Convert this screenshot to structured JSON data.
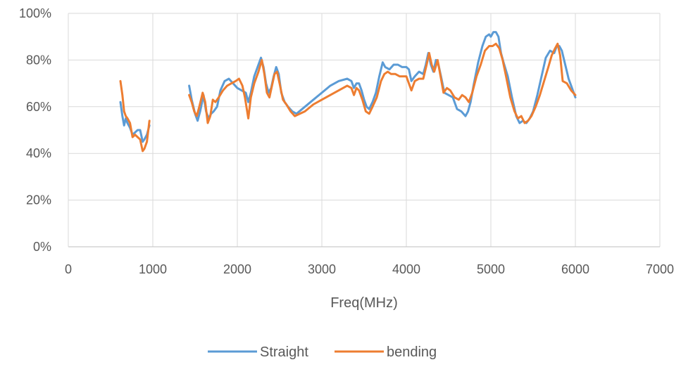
{
  "chart_data": {
    "type": "line",
    "title": "",
    "xlabel": "Freq(MHz)",
    "ylabel": "",
    "xlim": [
      0,
      7000
    ],
    "ylim": [
      0,
      1
    ],
    "x_ticks": [
      0,
      1000,
      2000,
      3000,
      4000,
      5000,
      6000,
      7000
    ],
    "x_tick_labels": [
      "0",
      "1000",
      "2000",
      "3000",
      "4000",
      "5000",
      "6000",
      "7000"
    ],
    "y_ticks": [
      0,
      0.2,
      0.4,
      0.6,
      0.8,
      1.0
    ],
    "y_tick_labels": [
      "0%",
      "20%",
      "40%",
      "60%",
      "80%",
      "100%"
    ],
    "grid": "vertical-and-horizontal",
    "legend": "bottom",
    "series": [
      {
        "name": "Straight",
        "color": "#5b9bd5",
        "segments": [
          [
            [
              617,
              0.62
            ],
            [
              640,
              0.56
            ],
            [
              660,
              0.52
            ],
            [
              680,
              0.55
            ],
            [
              700,
              0.53
            ],
            [
              730,
              0.51
            ],
            [
              760,
              0.48
            ],
            [
              790,
              0.49
            ],
            [
              820,
              0.5
            ],
            [
              850,
              0.5
            ],
            [
              880,
              0.45
            ],
            [
              900,
              0.46
            ],
            [
              930,
              0.48
            ],
            [
              960,
              0.52
            ]
          ],
          [
            [
              1430,
              0.69
            ],
            [
              1460,
              0.63
            ],
            [
              1500,
              0.57
            ],
            [
              1530,
              0.54
            ],
            [
              1560,
              0.58
            ],
            [
              1600,
              0.65
            ],
            [
              1630,
              0.58
            ],
            [
              1660,
              0.55
            ],
            [
              1690,
              0.57
            ],
            [
              1720,
              0.58
            ],
            [
              1760,
              0.6
            ],
            [
              1800,
              0.67
            ],
            [
              1850,
              0.71
            ],
            [
              1900,
              0.72
            ],
            [
              1950,
              0.7
            ],
            [
              2000,
              0.68
            ],
            [
              2050,
              0.67
            ],
            [
              2100,
              0.66
            ],
            [
              2130,
              0.62
            ],
            [
              2160,
              0.66
            ],
            [
              2200,
              0.73
            ],
            [
              2250,
              0.78
            ],
            [
              2280,
              0.81
            ],
            [
              2310,
              0.77
            ],
            [
              2340,
              0.7
            ],
            [
              2370,
              0.66
            ],
            [
              2400,
              0.68
            ],
            [
              2430,
              0.73
            ],
            [
              2460,
              0.77
            ],
            [
              2490,
              0.74
            ],
            [
              2520,
              0.66
            ],
            [
              2560,
              0.62
            ],
            [
              2600,
              0.6
            ],
            [
              2650,
              0.58
            ],
            [
              2700,
              0.57
            ],
            [
              2800,
              0.6
            ],
            [
              2900,
              0.63
            ],
            [
              3000,
              0.66
            ],
            [
              3100,
              0.69
            ],
            [
              3200,
              0.71
            ],
            [
              3300,
              0.72
            ],
            [
              3350,
              0.71
            ],
            [
              3380,
              0.68
            ],
            [
              3410,
              0.7
            ],
            [
              3440,
              0.7
            ],
            [
              3470,
              0.67
            ],
            [
              3500,
              0.63
            ],
            [
              3530,
              0.6
            ],
            [
              3560,
              0.59
            ],
            [
              3600,
              0.62
            ],
            [
              3640,
              0.66
            ],
            [
              3680,
              0.73
            ],
            [
              3720,
              0.79
            ],
            [
              3750,
              0.77
            ],
            [
              3800,
              0.76
            ],
            [
              3850,
              0.78
            ],
            [
              3900,
              0.78
            ],
            [
              3950,
              0.77
            ],
            [
              4000,
              0.77
            ],
            [
              4030,
              0.76
            ],
            [
              4060,
              0.71
            ],
            [
              4100,
              0.73
            ],
            [
              4150,
              0.75
            ],
            [
              4200,
              0.74
            ],
            [
              4230,
              0.78
            ],
            [
              4260,
              0.83
            ],
            [
              4290,
              0.78
            ],
            [
              4320,
              0.75
            ],
            [
              4350,
              0.8
            ],
            [
              4380,
              0.78
            ],
            [
              4410,
              0.73
            ],
            [
              4450,
              0.66
            ],
            [
              4500,
              0.65
            ],
            [
              4550,
              0.64
            ],
            [
              4600,
              0.59
            ],
            [
              4650,
              0.58
            ],
            [
              4700,
              0.56
            ],
            [
              4730,
              0.58
            ],
            [
              4760,
              0.62
            ],
            [
              4800,
              0.7
            ],
            [
              4850,
              0.79
            ],
            [
              4900,
              0.86
            ],
            [
              4940,
              0.9
            ],
            [
              4980,
              0.91
            ],
            [
              5000,
              0.9
            ],
            [
              5030,
              0.92
            ],
            [
              5060,
              0.92
            ],
            [
              5090,
              0.9
            ],
            [
              5120,
              0.83
            ],
            [
              5150,
              0.79
            ],
            [
              5200,
              0.73
            ],
            [
              5250,
              0.64
            ],
            [
              5300,
              0.56
            ],
            [
              5340,
              0.53
            ],
            [
              5380,
              0.54
            ],
            [
              5420,
              0.53
            ],
            [
              5460,
              0.55
            ],
            [
              5500,
              0.58
            ],
            [
              5550,
              0.65
            ],
            [
              5600,
              0.73
            ],
            [
              5650,
              0.81
            ],
            [
              5700,
              0.84
            ],
            [
              5750,
              0.83
            ],
            [
              5780,
              0.86
            ],
            [
              5810,
              0.86
            ],
            [
              5840,
              0.84
            ],
            [
              5880,
              0.78
            ],
            [
              5920,
              0.72
            ],
            [
              5960,
              0.68
            ],
            [
              6000,
              0.64
            ]
          ]
        ]
      },
      {
        "name": "bending",
        "color": "#ed7d31",
        "segments": [
          [
            [
              617,
              0.71
            ],
            [
              640,
              0.65
            ],
            [
              660,
              0.58
            ],
            [
              680,
              0.56
            ],
            [
              700,
              0.55
            ],
            [
              730,
              0.53
            ],
            [
              760,
              0.47
            ],
            [
              790,
              0.48
            ],
            [
              820,
              0.47
            ],
            [
              850,
              0.46
            ],
            [
              880,
              0.41
            ],
            [
              900,
              0.42
            ],
            [
              930,
              0.45
            ],
            [
              960,
              0.54
            ]
          ],
          [
            [
              1430,
              0.65
            ],
            [
              1460,
              0.62
            ],
            [
              1490,
              0.58
            ],
            [
              1520,
              0.56
            ],
            [
              1550,
              0.6
            ],
            [
              1590,
              0.66
            ],
            [
              1620,
              0.62
            ],
            [
              1650,
              0.53
            ],
            [
              1680,
              0.56
            ],
            [
              1710,
              0.63
            ],
            [
              1740,
              0.62
            ],
            [
              1780,
              0.64
            ],
            [
              1830,
              0.67
            ],
            [
              1880,
              0.69
            ],
            [
              1930,
              0.7
            ],
            [
              1980,
              0.71
            ],
            [
              2020,
              0.72
            ],
            [
              2060,
              0.69
            ],
            [
              2090,
              0.64
            ],
            [
              2130,
              0.55
            ],
            [
              2160,
              0.64
            ],
            [
              2200,
              0.7
            ],
            [
              2250,
              0.75
            ],
            [
              2290,
              0.8
            ],
            [
              2320,
              0.74
            ],
            [
              2350,
              0.66
            ],
            [
              2380,
              0.64
            ],
            [
              2410,
              0.69
            ],
            [
              2440,
              0.74
            ],
            [
              2470,
              0.75
            ],
            [
              2500,
              0.7
            ],
            [
              2540,
              0.63
            ],
            [
              2580,
              0.61
            ],
            [
              2630,
              0.58
            ],
            [
              2680,
              0.56
            ],
            [
              2800,
              0.58
            ],
            [
              2900,
              0.61
            ],
            [
              3000,
              0.63
            ],
            [
              3100,
              0.65
            ],
            [
              3200,
              0.67
            ],
            [
              3300,
              0.69
            ],
            [
              3350,
              0.68
            ],
            [
              3380,
              0.65
            ],
            [
              3410,
              0.68
            ],
            [
              3440,
              0.67
            ],
            [
              3480,
              0.63
            ],
            [
              3520,
              0.58
            ],
            [
              3560,
              0.57
            ],
            [
              3600,
              0.6
            ],
            [
              3650,
              0.64
            ],
            [
              3700,
              0.71
            ],
            [
              3740,
              0.74
            ],
            [
              3780,
              0.75
            ],
            [
              3820,
              0.74
            ],
            [
              3870,
              0.74
            ],
            [
              3920,
              0.73
            ],
            [
              3970,
              0.73
            ],
            [
              4000,
              0.73
            ],
            [
              4030,
              0.7
            ],
            [
              4060,
              0.67
            ],
            [
              4100,
              0.71
            ],
            [
              4150,
              0.72
            ],
            [
              4200,
              0.72
            ],
            [
              4240,
              0.78
            ],
            [
              4270,
              0.83
            ],
            [
              4300,
              0.78
            ],
            [
              4330,
              0.75
            ],
            [
              4370,
              0.8
            ],
            [
              4400,
              0.74
            ],
            [
              4440,
              0.66
            ],
            [
              4480,
              0.68
            ],
            [
              4520,
              0.67
            ],
            [
              4570,
              0.64
            ],
            [
              4620,
              0.63
            ],
            [
              4660,
              0.65
            ],
            [
              4700,
              0.64
            ],
            [
              4740,
              0.62
            ],
            [
              4780,
              0.66
            ],
            [
              4830,
              0.73
            ],
            [
              4880,
              0.78
            ],
            [
              4930,
              0.84
            ],
            [
              4980,
              0.86
            ],
            [
              5020,
              0.86
            ],
            [
              5060,
              0.87
            ],
            [
              5100,
              0.85
            ],
            [
              5140,
              0.8
            ],
            [
              5180,
              0.73
            ],
            [
              5230,
              0.64
            ],
            [
              5280,
              0.58
            ],
            [
              5320,
              0.55
            ],
            [
              5360,
              0.56
            ],
            [
              5400,
              0.53
            ],
            [
              5440,
              0.54
            ],
            [
              5480,
              0.56
            ],
            [
              5530,
              0.6
            ],
            [
              5580,
              0.65
            ],
            [
              5630,
              0.71
            ],
            [
              5680,
              0.77
            ],
            [
              5720,
              0.82
            ],
            [
              5760,
              0.85
            ],
            [
              5790,
              0.87
            ],
            [
              5820,
              0.82
            ],
            [
              5850,
              0.71
            ],
            [
              5900,
              0.7
            ],
            [
              5950,
              0.67
            ],
            [
              6000,
              0.65
            ]
          ]
        ]
      }
    ]
  }
}
